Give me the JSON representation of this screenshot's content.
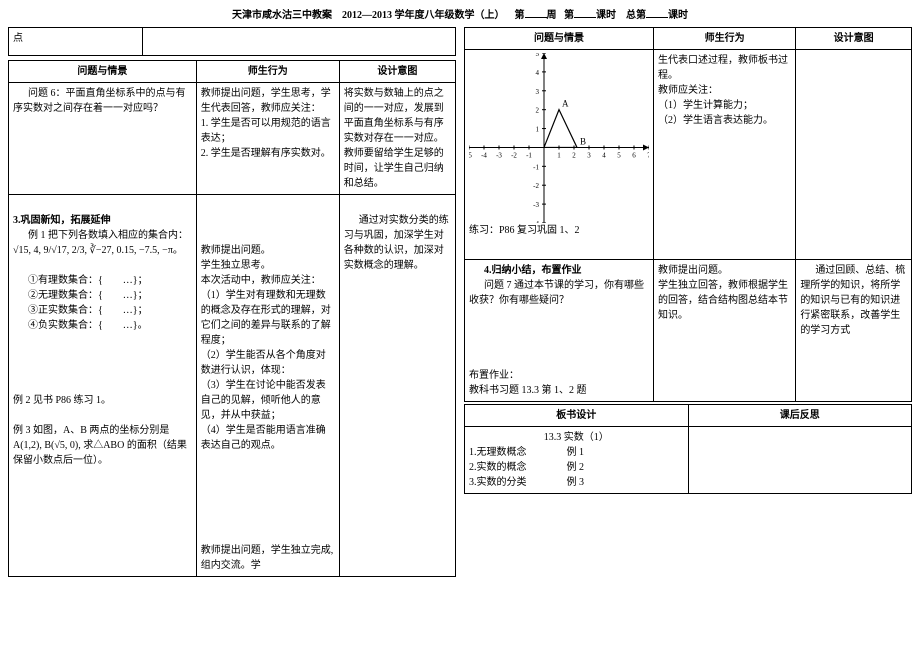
{
  "header": {
    "school": "天津市咸水沽三中教案",
    "year": "2012—2013 学年度八年级数学（上）",
    "week_label": "第",
    "week_unit": "周",
    "period_label": "第",
    "period_unit": "课时",
    "total_label": "总第",
    "total_unit": "课时"
  },
  "left": {
    "top_cell": "点",
    "h1": "问题与情景",
    "h2": "师生行为",
    "h3": "设计意图",
    "r1c1a": "问题 6：平面直角坐标系中的点与有序实数对之间存在着一一对应吗？",
    "r1c2": "教师提出问题，学生思考，学生代表回答，教师应关注：\n1. 学生是否可以用规范的语言表达；\n2. 学生是否理解有序实数对。",
    "r1c3": "将实数与数轴上的点之间的一一对应，发展到平面直角坐标系与有序实数对存在一一对应。教师要留给学生足够的时间，让学生自己归纳和总结。",
    "sec3_title": "3.巩固新知，拓展延伸",
    "ex1_label": "例 1 把下列各数填入相应的集合内：",
    "ex1_math": "√15, 4, 9/√17, 2/3, ∛−27, 0.15, −7.5, −π。",
    "ex1_items": {
      "a": "①有理数集合：{　　…}；",
      "b": "②无理数集合：{　　…}；",
      "c": "③正实数集合：{　　…}；",
      "d": "④负实数集合：{　　…}。"
    },
    "r2c2": "教师提出问题。\n学生独立思考。\n本次活动中，教师应关注：\n（1）学生对有理数和无理数的概念及存在形式的理解，对它们之间的差异与联系的了解程度；\n（2）学生能否从各个角度对数进行认识，体现：\n（3）学生在讨论中能否发表自己的见解，倾听他人的意见，并从中获益；\n（4）学生是否能用语言准确表达自己的观点。",
    "r2c3": "通过对实数分类的练习与巩固，加深学生对各种数的认识，加深对实数概念的理解。",
    "ex2": "例 2 见书 P86 练习 1。",
    "ex3": "例 3 如图，A、B 两点的坐标分别是 A(1,2), B(√5, 0), 求△ABO 的面积（结果保留小数点后一位）。",
    "r3c2": "教师提出问题，学生独立完成, 组内交流。学"
  },
  "right": {
    "h1": "问题与情景",
    "h2": "师生行为",
    "h3": "设计意图",
    "r1c2": "生代表口述过程，教师板书过程。\n教师应关注：\n（1）学生计算能力；\n（2）学生语言表达能力。",
    "chart": {
      "xmin": -5,
      "xmax": 7,
      "ymin": -4,
      "ymax": 5,
      "points": {
        "A": [
          1,
          2
        ],
        "B": [
          2.2,
          0
        ],
        "O": [
          0,
          0
        ]
      },
      "tri_color": "#000000",
      "axis_color": "#000000",
      "label_A": "A",
      "label_B": "B"
    },
    "practice": "练习：P86 复习巩固 1、2",
    "sec4_title": "4.归纳小结，布置作业",
    "q7": "问题 7 通过本节课的学习，你有哪些收获？你有哪些疑问？",
    "r2c2": "教师提出问题。\n学生独立回答，教师根据学生的回答，结合结构图总结本节知识。",
    "r2c3": "通过回顾、总结、梳理所学的知识，将所学的知识与已有的知识进行紧密联系，改善学生的学习方式",
    "hw_title": "布置作业：",
    "hw": "教科书习题 13.3 第 1、2 题",
    "board_h": "板书设计",
    "reflect_h": "课后反思",
    "board_title": "13.3 实数（1）",
    "board_l1": "1.无理数概念　　　　例 1",
    "board_l2": "2.实数的概念　　　　例 2",
    "board_l3": "3.实数的分类　　　　例 3"
  }
}
